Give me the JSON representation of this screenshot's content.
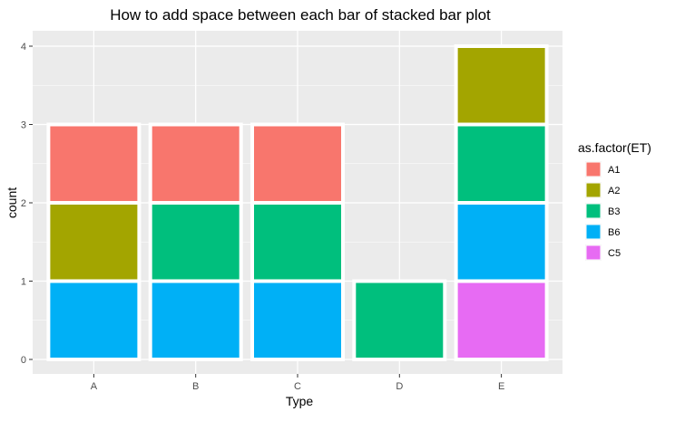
{
  "chart_data": {
    "type": "bar",
    "stacked": true,
    "title": "How to add space between each bar of stacked bar plot",
    "xlabel": "Type",
    "ylabel": "count",
    "categories": [
      "A",
      "B",
      "C",
      "D",
      "E"
    ],
    "ylim": [
      0,
      4
    ],
    "yticks": [
      0,
      1,
      2,
      3,
      4
    ],
    "grid": true,
    "legend": {
      "title": "as.factor(ET)",
      "position": "right",
      "entries": [
        "A1",
        "A2",
        "B3",
        "B6",
        "C5"
      ]
    },
    "colors": {
      "A1": "#F8766D",
      "A2": "#A3A500",
      "B3": "#00BF7D",
      "B6": "#00B0F6",
      "C5": "#E76BF3"
    },
    "series": [
      {
        "name": "A1",
        "values": [
          1,
          1,
          1,
          0,
          0
        ]
      },
      {
        "name": "A2",
        "values": [
          1,
          0,
          0,
          0,
          1
        ]
      },
      {
        "name": "B3",
        "values": [
          0,
          1,
          1,
          1,
          1
        ]
      },
      {
        "name": "B6",
        "values": [
          1,
          1,
          1,
          0,
          1
        ]
      },
      {
        "name": "C5",
        "values": [
          0,
          0,
          0,
          0,
          1
        ]
      }
    ],
    "stack_order_bottom_to_top": [
      "C5",
      "B6",
      "B3",
      "A2",
      "A1"
    ],
    "background_color": "#EBEBEB",
    "bar_outline_color": "#FFFFFF"
  }
}
